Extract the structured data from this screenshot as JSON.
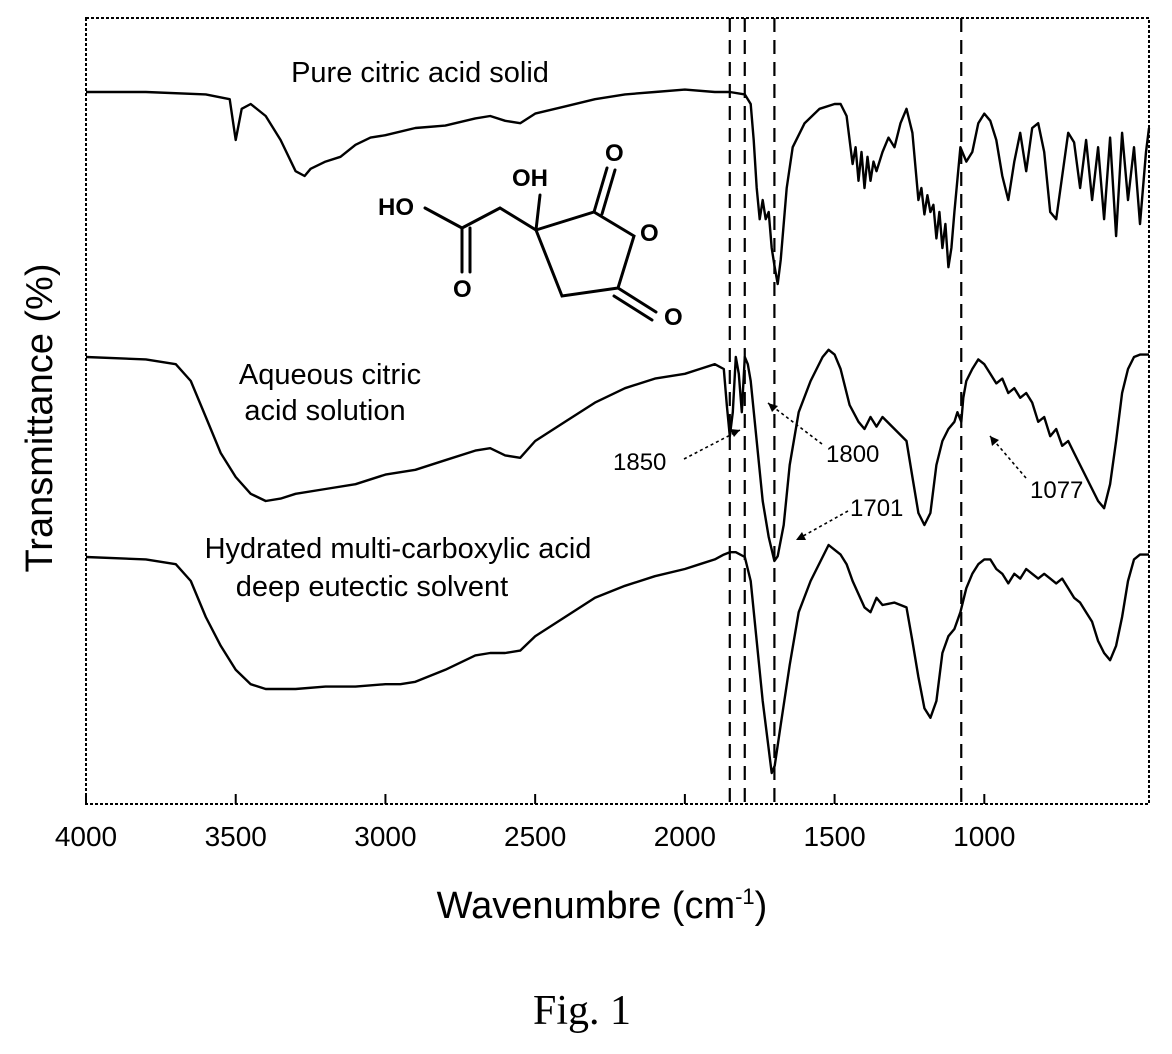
{
  "chart_data": {
    "type": "line",
    "xlabel": "Wavenumbre (cm",
    "xlabel_sup": "-1",
    "xlabel_end": ")",
    "ylabel": "Transmittance (%)",
    "xlim": [
      4000,
      450
    ],
    "x_reversed": true,
    "xticks": [
      4000,
      3500,
      3000,
      2500,
      2000,
      1500,
      1000
    ],
    "yticks": [],
    "grid": false,
    "legend": "none",
    "vertical_lines": [
      1850,
      1800,
      1701,
      1077
    ],
    "series": [
      {
        "name": "Pure citric acid solid",
        "offset": 0,
        "points": [
          [
            4000,
            0.95
          ],
          [
            3800,
            0.95
          ],
          [
            3600,
            0.94
          ],
          [
            3520,
            0.92
          ],
          [
            3500,
            0.75
          ],
          [
            3480,
            0.88
          ],
          [
            3450,
            0.9
          ],
          [
            3400,
            0.85
          ],
          [
            3350,
            0.75
          ],
          [
            3300,
            0.62
          ],
          [
            3270,
            0.6
          ],
          [
            3250,
            0.63
          ],
          [
            3200,
            0.66
          ],
          [
            3150,
            0.68
          ],
          [
            3100,
            0.73
          ],
          [
            3050,
            0.76
          ],
          [
            3000,
            0.77
          ],
          [
            2900,
            0.8
          ],
          [
            2800,
            0.81
          ],
          [
            2700,
            0.84
          ],
          [
            2650,
            0.85
          ],
          [
            2600,
            0.83
          ],
          [
            2550,
            0.82
          ],
          [
            2500,
            0.86
          ],
          [
            2400,
            0.89
          ],
          [
            2300,
            0.92
          ],
          [
            2200,
            0.94
          ],
          [
            2100,
            0.95
          ],
          [
            2000,
            0.96
          ],
          [
            1900,
            0.95
          ],
          [
            1850,
            0.95
          ],
          [
            1800,
            0.94
          ],
          [
            1780,
            0.9
          ],
          [
            1770,
            0.75
          ],
          [
            1760,
            0.55
          ],
          [
            1750,
            0.42
          ],
          [
            1740,
            0.5
          ],
          [
            1730,
            0.42
          ],
          [
            1720,
            0.45
          ],
          [
            1710,
            0.3
          ],
          [
            1700,
            0.22
          ],
          [
            1690,
            0.15
          ],
          [
            1680,
            0.25
          ],
          [
            1660,
            0.55
          ],
          [
            1640,
            0.72
          ],
          [
            1600,
            0.82
          ],
          [
            1550,
            0.88
          ],
          [
            1500,
            0.9
          ],
          [
            1480,
            0.9
          ],
          [
            1460,
            0.85
          ],
          [
            1440,
            0.65
          ],
          [
            1430,
            0.72
          ],
          [
            1420,
            0.58
          ],
          [
            1410,
            0.7
          ],
          [
            1400,
            0.55
          ],
          [
            1390,
            0.68
          ],
          [
            1380,
            0.58
          ],
          [
            1370,
            0.66
          ],
          [
            1360,
            0.62
          ],
          [
            1340,
            0.7
          ],
          [
            1320,
            0.76
          ],
          [
            1300,
            0.72
          ],
          [
            1280,
            0.82
          ],
          [
            1260,
            0.88
          ],
          [
            1240,
            0.78
          ],
          [
            1220,
            0.5
          ],
          [
            1210,
            0.55
          ],
          [
            1200,
            0.44
          ],
          [
            1190,
            0.52
          ],
          [
            1180,
            0.45
          ],
          [
            1170,
            0.48
          ],
          [
            1160,
            0.34
          ],
          [
            1150,
            0.45
          ],
          [
            1140,
            0.3
          ],
          [
            1130,
            0.4
          ],
          [
            1120,
            0.22
          ],
          [
            1110,
            0.3
          ],
          [
            1100,
            0.45
          ],
          [
            1080,
            0.72
          ],
          [
            1060,
            0.66
          ],
          [
            1040,
            0.7
          ],
          [
            1020,
            0.82
          ],
          [
            1000,
            0.86
          ],
          [
            980,
            0.83
          ],
          [
            960,
            0.75
          ],
          [
            940,
            0.6
          ],
          [
            920,
            0.5
          ],
          [
            900,
            0.66
          ],
          [
            880,
            0.78
          ],
          [
            860,
            0.62
          ],
          [
            840,
            0.8
          ],
          [
            820,
            0.82
          ],
          [
            800,
            0.7
          ],
          [
            780,
            0.45
          ],
          [
            760,
            0.42
          ],
          [
            740,
            0.6
          ],
          [
            720,
            0.78
          ],
          [
            700,
            0.74
          ],
          [
            680,
            0.55
          ],
          [
            660,
            0.75
          ],
          [
            640,
            0.5
          ],
          [
            620,
            0.72
          ],
          [
            600,
            0.42
          ],
          [
            580,
            0.76
          ],
          [
            560,
            0.35
          ],
          [
            540,
            0.78
          ],
          [
            520,
            0.5
          ],
          [
            500,
            0.72
          ],
          [
            480,
            0.4
          ],
          [
            460,
            0.7
          ],
          [
            450,
            0.8
          ]
        ]
      },
      {
        "name": "Aqueous citric acid solution",
        "offset": -1,
        "points": [
          [
            4000,
            0.95
          ],
          [
            3800,
            0.94
          ],
          [
            3700,
            0.92
          ],
          [
            3650,
            0.85
          ],
          [
            3600,
            0.7
          ],
          [
            3550,
            0.55
          ],
          [
            3500,
            0.45
          ],
          [
            3450,
            0.38
          ],
          [
            3400,
            0.35
          ],
          [
            3350,
            0.36
          ],
          [
            3300,
            0.38
          ],
          [
            3200,
            0.4
          ],
          [
            3100,
            0.42
          ],
          [
            3000,
            0.46
          ],
          [
            2900,
            0.48
          ],
          [
            2800,
            0.52
          ],
          [
            2700,
            0.56
          ],
          [
            2650,
            0.57
          ],
          [
            2600,
            0.54
          ],
          [
            2550,
            0.53
          ],
          [
            2500,
            0.6
          ],
          [
            2400,
            0.68
          ],
          [
            2300,
            0.76
          ],
          [
            2200,
            0.82
          ],
          [
            2100,
            0.86
          ],
          [
            2000,
            0.88
          ],
          [
            1950,
            0.9
          ],
          [
            1900,
            0.92
          ],
          [
            1870,
            0.9
          ],
          [
            1860,
            0.75
          ],
          [
            1850,
            0.62
          ],
          [
            1840,
            0.72
          ],
          [
            1830,
            0.95
          ],
          [
            1820,
            0.88
          ],
          [
            1810,
            0.72
          ],
          [
            1800,
            0.95
          ],
          [
            1790,
            0.92
          ],
          [
            1780,
            0.85
          ],
          [
            1760,
            0.6
          ],
          [
            1740,
            0.35
          ],
          [
            1720,
            0.2
          ],
          [
            1701,
            0.1
          ],
          [
            1690,
            0.12
          ],
          [
            1670,
            0.25
          ],
          [
            1650,
            0.5
          ],
          [
            1620,
            0.72
          ],
          [
            1580,
            0.85
          ],
          [
            1540,
            0.95
          ],
          [
            1520,
            0.98
          ],
          [
            1500,
            0.96
          ],
          [
            1480,
            0.9
          ],
          [
            1450,
            0.75
          ],
          [
            1420,
            0.68
          ],
          [
            1400,
            0.65
          ],
          [
            1380,
            0.7
          ],
          [
            1360,
            0.66
          ],
          [
            1340,
            0.7
          ],
          [
            1300,
            0.65
          ],
          [
            1260,
            0.6
          ],
          [
            1240,
            0.45
          ],
          [
            1220,
            0.3
          ],
          [
            1200,
            0.25
          ],
          [
            1180,
            0.3
          ],
          [
            1160,
            0.5
          ],
          [
            1140,
            0.6
          ],
          [
            1120,
            0.65
          ],
          [
            1100,
            0.68
          ],
          [
            1090,
            0.72
          ],
          [
            1077,
            0.68
          ],
          [
            1070,
            0.78
          ],
          [
            1060,
            0.85
          ],
          [
            1040,
            0.9
          ],
          [
            1020,
            0.94
          ],
          [
            1000,
            0.92
          ],
          [
            980,
            0.88
          ],
          [
            960,
            0.84
          ],
          [
            940,
            0.86
          ],
          [
            920,
            0.8
          ],
          [
            900,
            0.82
          ],
          [
            880,
            0.78
          ],
          [
            860,
            0.8
          ],
          [
            840,
            0.76
          ],
          [
            820,
            0.68
          ],
          [
            800,
            0.7
          ],
          [
            780,
            0.62
          ],
          [
            760,
            0.65
          ],
          [
            740,
            0.58
          ],
          [
            720,
            0.6
          ],
          [
            700,
            0.55
          ],
          [
            680,
            0.5
          ],
          [
            660,
            0.45
          ],
          [
            640,
            0.4
          ],
          [
            620,
            0.35
          ],
          [
            600,
            0.32
          ],
          [
            580,
            0.42
          ],
          [
            560,
            0.6
          ],
          [
            540,
            0.8
          ],
          [
            520,
            0.9
          ],
          [
            500,
            0.95
          ],
          [
            480,
            0.96
          ],
          [
            460,
            0.96
          ],
          [
            450,
            0.96
          ]
        ]
      },
      {
        "name": "Hydrated multi-carboxylic acid deep eutectic solvent",
        "offset": -2,
        "points": [
          [
            4000,
            0.95
          ],
          [
            3800,
            0.94
          ],
          [
            3700,
            0.92
          ],
          [
            3650,
            0.85
          ],
          [
            3600,
            0.7
          ],
          [
            3550,
            0.58
          ],
          [
            3500,
            0.48
          ],
          [
            3450,
            0.42
          ],
          [
            3400,
            0.4
          ],
          [
            3300,
            0.4
          ],
          [
            3200,
            0.41
          ],
          [
            3100,
            0.41
          ],
          [
            3000,
            0.42
          ],
          [
            2950,
            0.42
          ],
          [
            2900,
            0.43
          ],
          [
            2800,
            0.48
          ],
          [
            2700,
            0.54
          ],
          [
            2650,
            0.55
          ],
          [
            2600,
            0.55
          ],
          [
            2550,
            0.56
          ],
          [
            2500,
            0.62
          ],
          [
            2400,
            0.7
          ],
          [
            2300,
            0.78
          ],
          [
            2200,
            0.83
          ],
          [
            2100,
            0.87
          ],
          [
            2000,
            0.9
          ],
          [
            1950,
            0.92
          ],
          [
            1900,
            0.94
          ],
          [
            1870,
            0.96
          ],
          [
            1850,
            0.97
          ],
          [
            1830,
            0.97
          ],
          [
            1800,
            0.95
          ],
          [
            1780,
            0.85
          ],
          [
            1760,
            0.6
          ],
          [
            1740,
            0.35
          ],
          [
            1720,
            0.15
          ],
          [
            1710,
            0.05
          ],
          [
            1700,
            0.08
          ],
          [
            1680,
            0.25
          ],
          [
            1650,
            0.5
          ],
          [
            1620,
            0.72
          ],
          [
            1580,
            0.85
          ],
          [
            1540,
            0.95
          ],
          [
            1520,
            1.0
          ],
          [
            1500,
            0.98
          ],
          [
            1480,
            0.96
          ],
          [
            1460,
            0.92
          ],
          [
            1440,
            0.85
          ],
          [
            1400,
            0.74
          ],
          [
            1380,
            0.72
          ],
          [
            1360,
            0.78
          ],
          [
            1340,
            0.75
          ],
          [
            1300,
            0.76
          ],
          [
            1260,
            0.74
          ],
          [
            1240,
            0.6
          ],
          [
            1220,
            0.45
          ],
          [
            1200,
            0.32
          ],
          [
            1180,
            0.28
          ],
          [
            1160,
            0.35
          ],
          [
            1140,
            0.55
          ],
          [
            1120,
            0.62
          ],
          [
            1100,
            0.65
          ],
          [
            1080,
            0.72
          ],
          [
            1060,
            0.82
          ],
          [
            1040,
            0.88
          ],
          [
            1020,
            0.92
          ],
          [
            1000,
            0.94
          ],
          [
            980,
            0.94
          ],
          [
            960,
            0.9
          ],
          [
            940,
            0.88
          ],
          [
            920,
            0.84
          ],
          [
            900,
            0.88
          ],
          [
            880,
            0.86
          ],
          [
            860,
            0.9
          ],
          [
            840,
            0.88
          ],
          [
            820,
            0.86
          ],
          [
            800,
            0.88
          ],
          [
            780,
            0.86
          ],
          [
            760,
            0.84
          ],
          [
            740,
            0.86
          ],
          [
            720,
            0.82
          ],
          [
            700,
            0.78
          ],
          [
            680,
            0.76
          ],
          [
            660,
            0.72
          ],
          [
            640,
            0.68
          ],
          [
            620,
            0.6
          ],
          [
            600,
            0.55
          ],
          [
            580,
            0.52
          ],
          [
            560,
            0.58
          ],
          [
            540,
            0.7
          ],
          [
            520,
            0.85
          ],
          [
            500,
            0.94
          ],
          [
            480,
            0.96
          ],
          [
            460,
            0.96
          ],
          [
            450,
            0.96
          ]
        ]
      }
    ],
    "series_labels": [
      {
        "series": 0,
        "lines": [
          "Pure citric acid solid"
        ]
      },
      {
        "series": 1,
        "lines": [
          "Aqueous citric",
          "acid solution"
        ]
      },
      {
        "series": 2,
        "lines": [
          "Hydrated multi-carboxylic acid",
          "deep eutectic solvent"
        ]
      }
    ],
    "annotations": [
      {
        "label": "1850",
        "x": 1850
      },
      {
        "label": "1800",
        "x": 1800
      },
      {
        "label": "1701",
        "x": 1701
      },
      {
        "label": "1077",
        "x": 1077
      }
    ],
    "molecule_labels": {
      "hydroxyl": "OH",
      "acid": "HO",
      "oxygen": "O"
    }
  },
  "caption": "Fig. 1"
}
